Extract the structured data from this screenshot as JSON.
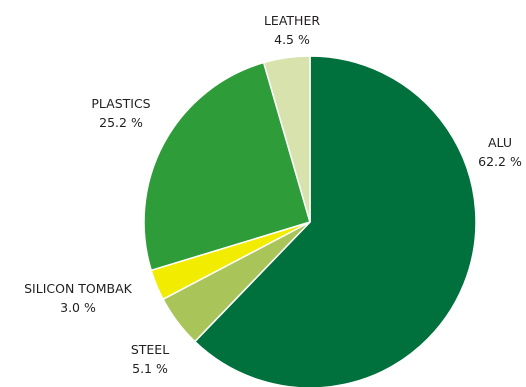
{
  "chart_data": {
    "type": "pie",
    "start_angle_deg": 0,
    "direction": "clockwise",
    "slices": [
      {
        "label": "ALU",
        "value": 62.2,
        "value_text": "62.2 %",
        "color": "#00703c"
      },
      {
        "label": "STEEL",
        "value": 5.1,
        "value_text": "5.1 %",
        "color": "#a9c55a"
      },
      {
        "label": "SILICON TOMBAK",
        "value": 3.0,
        "value_text": "3.0 %",
        "color": "#f2ec00"
      },
      {
        "label": "PLASTICS",
        "value": 25.2,
        "value_text": "25.2 %",
        "color": "#2e9c38"
      },
      {
        "label": "LEATHER",
        "value": 4.5,
        "value_text": "4.5 %",
        "color": "#d8e2ad"
      }
    ]
  }
}
